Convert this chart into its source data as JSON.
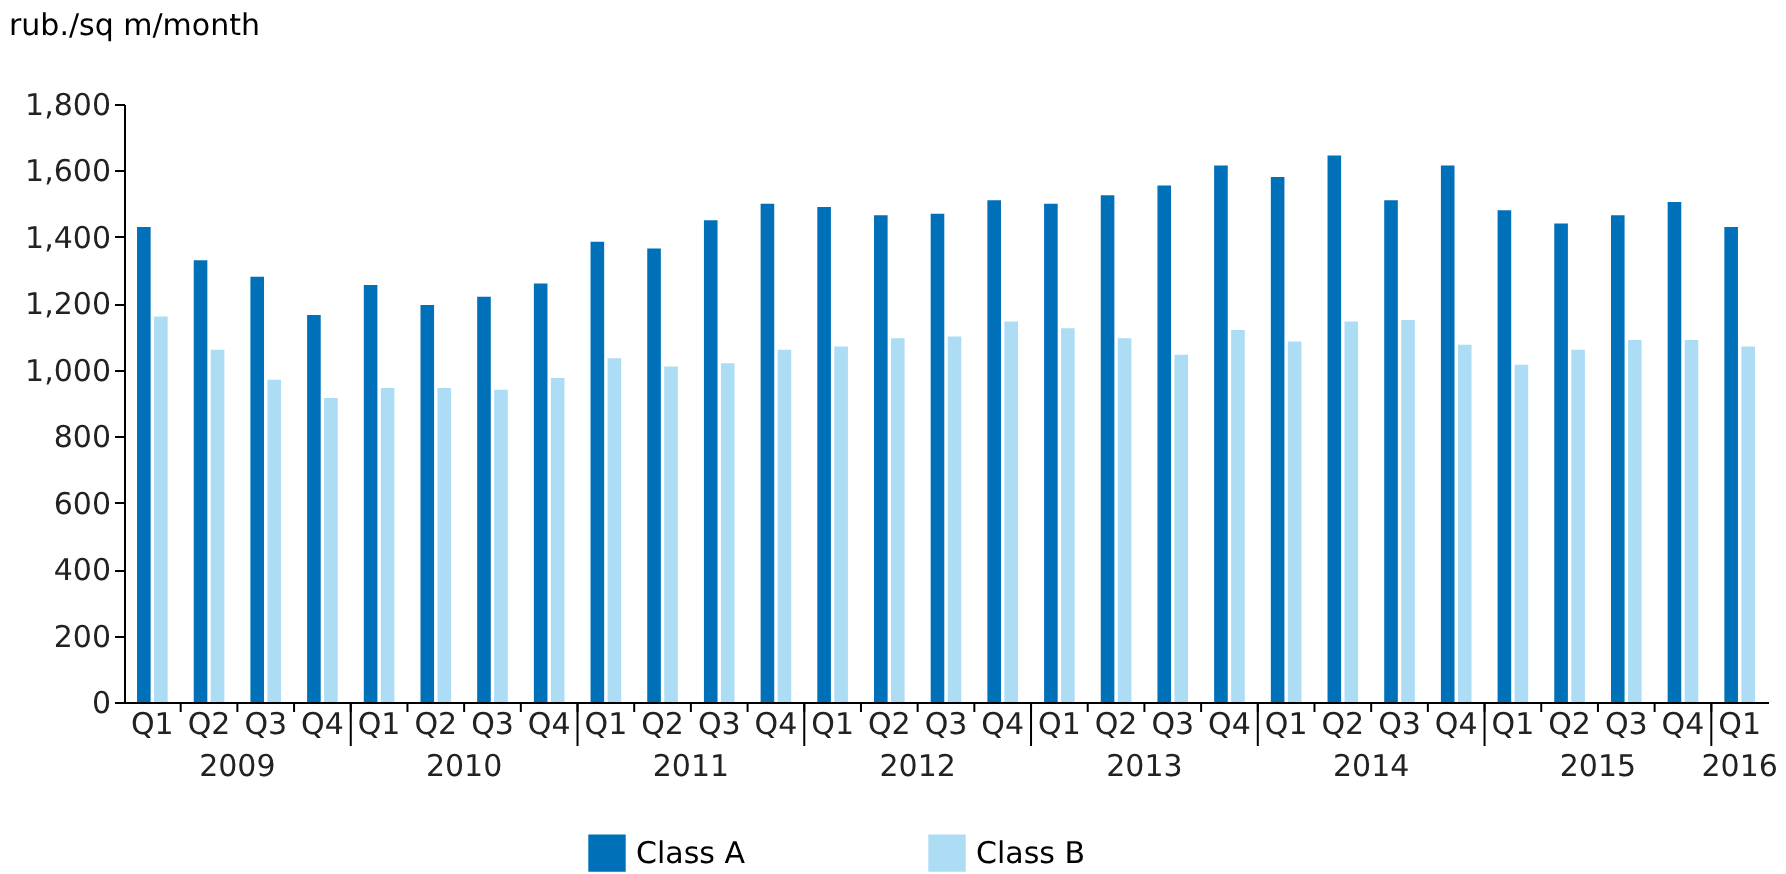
{
  "chart_data": {
    "type": "bar",
    "ylabel": "rub./sq m/month",
    "categories": [
      "Q1",
      "Q2",
      "Q3",
      "Q4",
      "Q1",
      "Q2",
      "Q3",
      "Q4",
      "Q1",
      "Q2",
      "Q3",
      "Q4",
      "Q1",
      "Q2",
      "Q3",
      "Q4",
      "Q1",
      "Q2",
      "Q3",
      "Q4",
      "Q1",
      "Q2",
      "Q3",
      "Q4",
      "Q1",
      "Q2",
      "Q3",
      "Q4",
      "Q1"
    ],
    "annotations": [
      "2009",
      "2010",
      "2011",
      "2012",
      "2013",
      "2014",
      "2015",
      "2016"
    ],
    "series": [
      {
        "name": "Class A",
        "color": "#0070b8",
        "values": [
          1430,
          1330,
          1280,
          1165,
          1255,
          1195,
          1220,
          1260,
          1385,
          1365,
          1450,
          1500,
          1490,
          1465,
          1470,
          1510,
          1500,
          1525,
          1555,
          1615,
          1580,
          1645,
          1510,
          1615,
          1480,
          1440,
          1465,
          1505,
          1430
        ]
      },
      {
        "name": "Class B",
        "color": "#addcf5",
        "values": [
          1160,
          1060,
          970,
          915,
          945,
          945,
          940,
          975,
          1035,
          1010,
          1020,
          1060,
          1070,
          1095,
          1100,
          1145,
          1125,
          1095,
          1045,
          1120,
          1085,
          1145,
          1150,
          1075,
          1015,
          1060,
          1090,
          1090,
          1070
        ]
      }
    ],
    "ylim": [
      0,
      1800
    ],
    "yticks": [
      0,
      200,
      400,
      600,
      800,
      {
        "value": 1000,
        "label": "1,000"
      },
      {
        "value": 1200,
        "label": "1,200"
      },
      {
        "value": 1400,
        "label": "1,400"
      },
      {
        "value": 1600,
        "label": "1,600"
      },
      {
        "value": 1800,
        "label": "1,800"
      }
    ],
    "grid": false,
    "legend": "bottom"
  }
}
